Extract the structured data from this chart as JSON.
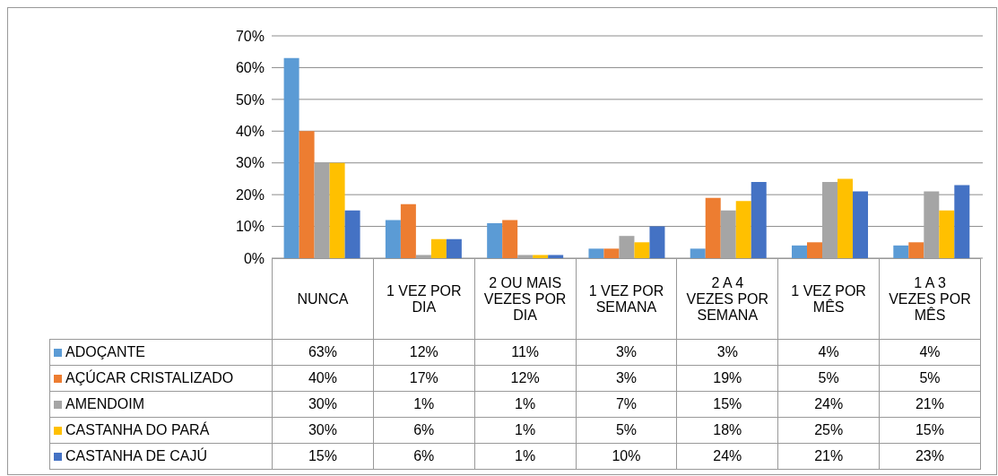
{
  "chart_data": {
    "type": "bar",
    "categories": [
      "NUNCA",
      "1 VEZ POR DIA",
      "2 OU MAIS VEZES POR DIA",
      "1 VEZ POR SEMANA",
      "2 A 4 VEZES POR SEMANA",
      "1 VEZ POR MÊS",
      "1 A 3 VEZES POR MÊS"
    ],
    "series": [
      {
        "name": "ADOÇANTE",
        "color": "#5b9bd5",
        "values": [
          63,
          12,
          11,
          3,
          3,
          4,
          4
        ],
        "value_labels": [
          "63%",
          "12%",
          "11%",
          "3%",
          "3%",
          "4%",
          "4%"
        ]
      },
      {
        "name": "AÇÚCAR CRISTALIZADO",
        "color": "#ed7d31",
        "values": [
          40,
          17,
          12,
          3,
          19,
          5,
          5
        ],
        "value_labels": [
          "40%",
          "17%",
          "12%",
          "3%",
          "19%",
          "5%",
          "5%"
        ]
      },
      {
        "name": "AMENDOIM",
        "color": "#a5a5a5",
        "values": [
          30,
          1,
          1,
          7,
          15,
          24,
          21
        ],
        "value_labels": [
          "30%",
          "1%",
          "1%",
          "7%",
          "15%",
          "24%",
          "21%"
        ]
      },
      {
        "name": "CASTANHA DO PARÁ",
        "color": "#ffc000",
        "values": [
          30,
          6,
          1,
          5,
          18,
          25,
          15
        ],
        "value_labels": [
          "30%",
          "6%",
          "1%",
          "5%",
          "18%",
          "25%",
          "15%"
        ]
      },
      {
        "name": "CASTANHA DE CAJÚ",
        "color": "#4472c4",
        "values": [
          15,
          6,
          1,
          10,
          24,
          21,
          23
        ],
        "value_labels": [
          "15%",
          "6%",
          "1%",
          "10%",
          "24%",
          "21%",
          "23%"
        ]
      }
    ],
    "ylim": [
      0,
      70
    ],
    "yticks": [
      {
        "value": 0,
        "label": "0%"
      },
      {
        "value": 10,
        "label": "10%"
      },
      {
        "value": 20,
        "label": "20%"
      },
      {
        "value": 30,
        "label": "30%"
      },
      {
        "value": 40,
        "label": "40%"
      },
      {
        "value": 50,
        "label": "50%"
      },
      {
        "value": 60,
        "label": "60%"
      },
      {
        "value": 70,
        "label": "70%"
      }
    ],
    "grid": "y",
    "legend": "bottom"
  }
}
